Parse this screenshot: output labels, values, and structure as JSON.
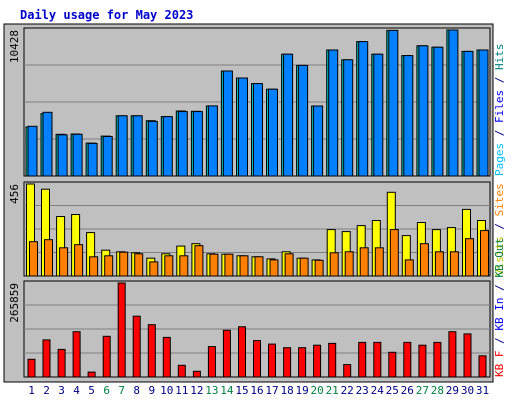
{
  "chart_data": {
    "title": "Daily usage for May 2023",
    "days": [
      "1",
      "2",
      "3",
      "4",
      "5",
      "6",
      "7",
      "8",
      "9",
      "10",
      "11",
      "12",
      "13",
      "14",
      "15",
      "16",
      "17",
      "18",
      "19",
      "20",
      "21",
      "22",
      "23",
      "24",
      "25",
      "26",
      "27",
      "28",
      "29",
      "30",
      "31"
    ],
    "weekend_days": [
      "6",
      "7",
      "13",
      "14",
      "20",
      "21",
      "27",
      "28"
    ],
    "colors": {
      "title": "#0000cc",
      "background": "#c0c0c0",
      "hits": "#00c0c0",
      "files": "#0080ff",
      "pages": "#00c8ff",
      "visits": "#ffff00",
      "sites": "#ff8000",
      "kbin": "#0000a0",
      "kbout": "#008040",
      "kbf": "#ff0000",
      "weekend_label": "#008040",
      "weekday_label": "#000080"
    },
    "panels": [
      {
        "type": "bar",
        "ymax_label": "10428",
        "ymax": 10428,
        "legend": [
          {
            "text": "Pages",
            "color": "#00c0ff"
          },
          {
            "text": " / ",
            "color": "#000080"
          },
          {
            "text": "Files",
            "color": "#0000ff"
          },
          {
            "text": " / ",
            "color": "#000080"
          },
          {
            "text": "Hits",
            "color": "#008080"
          }
        ],
        "series": [
          {
            "key": "hits",
            "values": [
              3500,
              4450,
              2980,
              3000,
              2350,
              2850,
              4300,
              4300,
              3950,
              4250,
              4640,
              4620,
              5000,
              7500,
              7000,
              6600,
              6200,
              8700,
              7900,
              5000,
              9000,
              8300,
              9600,
              8700,
              10400,
              8600,
              9300,
              9200,
              10428,
              8900,
              9000
            ]
          },
          {
            "key": "files",
            "values": [
              3550,
              4550,
              2940,
              2980,
              2330,
              2820,
              4300,
              4300,
              3900,
              4240,
              4600,
              4600,
              5010,
              7500,
              7000,
              6600,
              6200,
              8700,
              7900,
              5000,
              9000,
              8300,
              9600,
              8700,
              10400,
              8600,
              9300,
              9200,
              10428,
              8900,
              9000
            ]
          }
        ]
      },
      {
        "type": "bar",
        "ymax_label": "456",
        "ymax": 456,
        "legend": [
          {
            "text": "Visits",
            "color": "#c0c000"
          },
          {
            "text": " / ",
            "color": "#000080"
          },
          {
            "text": "Sites",
            "color": "#ff8000"
          }
        ],
        "series": [
          {
            "key": "visits",
            "values": [
              456,
              430,
              295,
              305,
              215,
              128,
              120,
              115,
              88,
              110,
              148,
              160,
              110,
              108,
              100,
              95,
              85,
              120,
              88,
              80,
              230,
              220,
              250,
              275,
              415,
              200,
              265,
              230,
              240,
              330,
              275
            ]
          },
          {
            "key": "sites",
            "values": [
              170,
              180,
              140,
              155,
              95,
              100,
              118,
              110,
              70,
              100,
              100,
              150,
              108,
              108,
              100,
              95,
              80,
              110,
              88,
              78,
              115,
              120,
              140,
              140,
              230,
              80,
              160,
              120,
              120,
              185,
              225
            ]
          }
        ]
      },
      {
        "type": "bar",
        "ymax_label": "265859",
        "ymax": 265859,
        "legend": [
          {
            "text": "KB F",
            "color": "#ff0000"
          },
          {
            "text": " / ",
            "color": "#000080"
          },
          {
            "text": "KB In",
            "color": "#0000ff"
          },
          {
            "text": " / ",
            "color": "#000080"
          },
          {
            "text": "KB Out",
            "color": "#008040"
          }
        ],
        "series": [
          {
            "key": "kbf",
            "values": [
              50000,
              105000,
              78000,
              128000,
              14000,
              115000,
              265859,
              172000,
              148000,
              112000,
              33000,
              16000,
              86000,
              132000,
              142000,
              103000,
              93000,
              83000,
              83000,
              90000,
              95000,
              35000,
              98000,
              98000,
              70000,
              98000,
              90000,
              98000,
              128000,
              122000,
              60000
            ]
          }
        ]
      }
    ]
  }
}
